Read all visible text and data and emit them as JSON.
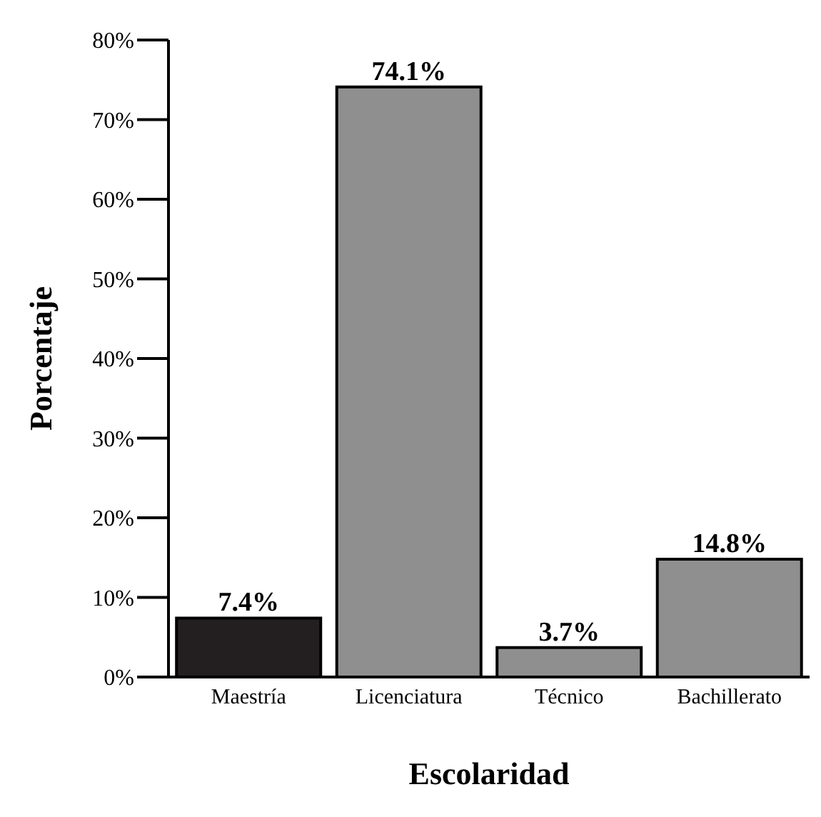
{
  "chart_data": {
    "type": "bar",
    "xlabel": "Escolaridad",
    "ylabel": "Porcentaje",
    "categories": [
      "Maestría",
      "Licenciatura",
      "Técnico",
      "Bachillerato"
    ],
    "values": [
      7.4,
      74.1,
      3.7,
      14.8
    ],
    "colors": [
      "#231f20",
      "#8f8f8f",
      "#8f8f8f",
      "#8f8f8f"
    ],
    "value_labels": [
      "7.4%",
      "74.1%",
      "3.7%",
      "14.8%"
    ],
    "ylim": [
      0,
      80
    ],
    "yticks": [
      {
        "value": 0,
        "label": "0%"
      },
      {
        "value": 10,
        "label": "10%"
      },
      {
        "value": 20,
        "label": "20%"
      },
      {
        "value": 30,
        "label": "30%"
      },
      {
        "value": 40,
        "label": "40%"
      },
      {
        "value": 50,
        "label": "50%"
      },
      {
        "value": 60,
        "label": "60%"
      },
      {
        "value": 70,
        "label": "70%"
      },
      {
        "value": 80,
        "label": "80%"
      }
    ],
    "grid": false,
    "legend": false
  }
}
